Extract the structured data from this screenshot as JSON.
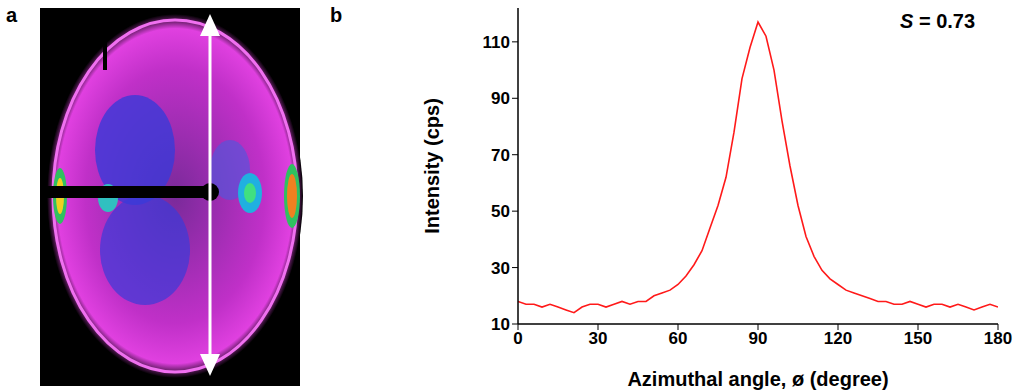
{
  "panel_labels": [
    "a",
    "b"
  ],
  "chart_data": {
    "type": "line",
    "x_label": "Azimuthal angle, ø (degree)",
    "y_label": "Intensity (cps)",
    "annotations": [
      "S = 0.73"
    ],
    "color": "#ff1a1a",
    "grid": false,
    "xlim": [
      0,
      180
    ],
    "xticks": [
      0,
      30,
      60,
      90,
      120,
      150,
      180
    ],
    "ylim": [
      10,
      122
    ],
    "yticks": [
      10,
      30,
      50,
      70,
      90,
      110
    ],
    "x": [
      0,
      3,
      6,
      9,
      12,
      15,
      18,
      21,
      24,
      27,
      30,
      33,
      36,
      39,
      42,
      45,
      48,
      51,
      54,
      57,
      60,
      63,
      66,
      69,
      72,
      75,
      78,
      81,
      84,
      87,
      90,
      93,
      96,
      99,
      102,
      105,
      108,
      111,
      114,
      117,
      120,
      123,
      126,
      129,
      132,
      135,
      138,
      141,
      144,
      147,
      150,
      153,
      156,
      159,
      162,
      165,
      168,
      171,
      174,
      177,
      180
    ],
    "values": [
      18,
      17,
      17,
      16,
      17,
      16,
      15,
      14,
      16,
      17,
      17,
      16,
      17,
      18,
      17,
      18,
      18,
      20,
      21,
      22,
      24,
      27,
      31,
      36,
      44,
      52,
      62,
      78,
      97,
      108,
      117,
      112,
      100,
      82,
      66,
      52,
      41,
      34,
      29,
      26,
      24,
      22,
      21,
      20,
      19,
      18,
      18,
      17,
      17,
      18,
      17,
      16,
      17,
      17,
      16,
      17,
      16,
      15,
      16,
      17,
      16
    ]
  }
}
